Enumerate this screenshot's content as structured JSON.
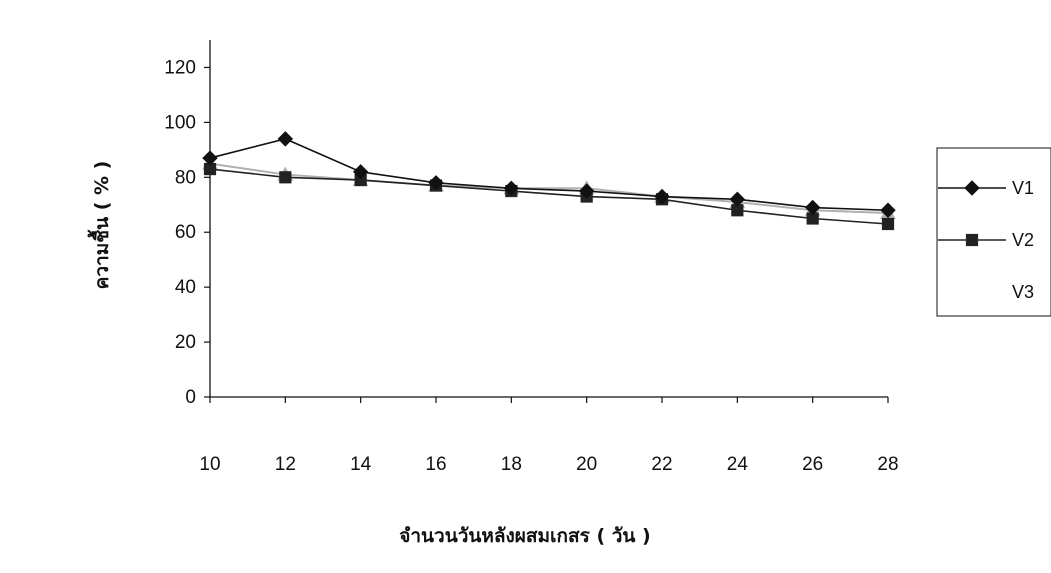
{
  "chart_data": {
    "type": "line",
    "title": "",
    "xlabel": "จำนวนวันหลังผสมเกสร ( วัน )",
    "ylabel": "ความชื้น ( % )",
    "x": [
      10,
      12,
      14,
      16,
      18,
      20,
      22,
      24,
      26,
      28
    ],
    "ylim": [
      0,
      120
    ],
    "yticks": [
      0,
      20,
      40,
      60,
      80,
      100,
      120
    ],
    "grid": false,
    "legend_position": "right",
    "series": [
      {
        "name": "V1",
        "marker": "diamond",
        "color": "#111111",
        "values": [
          87,
          94,
          82,
          78,
          76,
          75,
          73,
          72,
          69,
          68
        ]
      },
      {
        "name": "V2",
        "marker": "square",
        "color": "#222222",
        "values": [
          83,
          80,
          79,
          77,
          75,
          73,
          72,
          68,
          65,
          63
        ]
      },
      {
        "name": "V3",
        "marker": "triangle",
        "color": "#b0b0b0",
        "values": [
          85,
          81,
          79,
          77,
          76,
          76,
          73,
          71,
          68,
          67
        ]
      }
    ]
  }
}
